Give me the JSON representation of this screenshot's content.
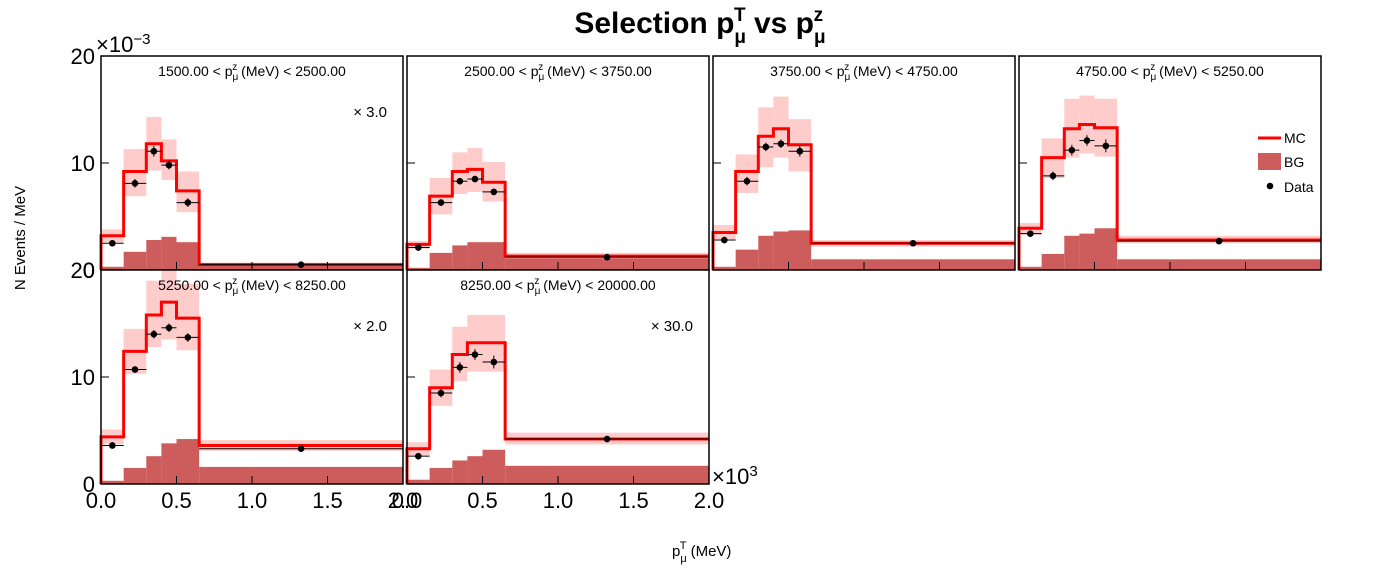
{
  "title": {
    "main": "Selection p",
    "sub": "μ",
    "sup": "T",
    "mid": " vs p",
    "sub2": "μ",
    "sup2": "z"
  },
  "x_axis_label": {
    "main": "p",
    "sub": "μ",
    "sup": "T",
    "rest": " (MeV)"
  },
  "y_axis_label": "N Events / MeV",
  "y_exponent": {
    "base": "×10",
    "power": "−3"
  },
  "x_exponent": {
    "base": "×10",
    "power": "3"
  },
  "colors": {
    "mc": "#ff0000",
    "mc_band": "#ffcccc",
    "bg": "#cd5c5c",
    "data": "#000000"
  },
  "legend": [
    {
      "label": "MC",
      "kind": "line"
    },
    {
      "label": "BG",
      "kind": "box"
    },
    {
      "label": "Data",
      "kind": "marker"
    }
  ],
  "chart_data": {
    "type": "histogram-grid",
    "x_bin_edges": [
      0,
      0.15,
      0.3,
      0.4,
      0.5,
      0.65,
      2.0
    ],
    "x_units": "×10^3 MeV",
    "y_units": "×10^-3",
    "xlim": [
      0,
      2.0
    ],
    "ylim": [
      0,
      20
    ],
    "x_ticks": [
      "0.0",
      "0.5",
      "1.0",
      "1.5",
      "2.0"
    ],
    "y_ticks": [
      "0",
      "10",
      "20"
    ],
    "panels": [
      {
        "label_pre": "1500.00 < p",
        "label_post": " (MeV) < 2500.00",
        "scale": "× 3.0",
        "mc": [
          3.2,
          9.2,
          11.8,
          10.2,
          7.4,
          0.5
        ],
        "mc_band": [
          [
            2.6,
            3.8
          ],
          [
            6.9,
            11.3
          ],
          [
            9.3,
            14.3
          ],
          [
            8.4,
            12.2
          ],
          [
            5.4,
            9.2
          ],
          [
            0.3,
            0.7
          ]
        ],
        "bg": [
          0.3,
          1.7,
          2.8,
          3.1,
          2.6,
          0.4
        ],
        "data": [
          2.5,
          8.1,
          11.1,
          9.8,
          6.3,
          0.5
        ],
        "data_err": [
          0.3,
          0.4,
          0.5,
          0.4,
          0.4,
          0.05
        ]
      },
      {
        "label_pre": "2500.00 < p",
        "label_post": " (MeV) < 3750.00",
        "scale": "",
        "mc": [
          2.4,
          6.9,
          9.2,
          9.4,
          8.2,
          1.3
        ],
        "mc_band": [
          [
            2.0,
            2.7
          ],
          [
            5.2,
            8.6
          ],
          [
            7.1,
            11.0
          ],
          [
            7.3,
            11.4
          ],
          [
            6.4,
            10.1
          ],
          [
            1.0,
            1.6
          ]
        ],
        "bg": [
          0.2,
          1.6,
          2.3,
          2.6,
          2.6,
          1.1
        ],
        "data": [
          2.1,
          6.3,
          8.3,
          8.5,
          7.3,
          1.2
        ],
        "data_err": [
          0.3,
          0.3,
          0.3,
          0.3,
          0.3,
          0.05
        ]
      },
      {
        "label_pre": "3750.00 < p",
        "label_post": " (MeV) < 4750.00",
        "scale": "",
        "mc": [
          3.5,
          9.2,
          12.5,
          13.2,
          11.7,
          2.5
        ],
        "mc_band": [
          [
            2.9,
            4.2
          ],
          [
            7.2,
            10.8
          ],
          [
            9.6,
            15.2
          ],
          [
            10.5,
            16.2
          ],
          [
            9.2,
            14.1
          ],
          [
            2.2,
            2.8
          ]
        ],
        "bg": [
          0.3,
          1.9,
          3.2,
          3.6,
          3.7,
          1.0
        ],
        "data": [
          2.8,
          8.3,
          11.5,
          11.8,
          11.1,
          2.5
        ],
        "data_err": [
          0.3,
          0.4,
          0.4,
          0.4,
          0.5,
          0.05
        ]
      },
      {
        "label_pre": "4750.00 < p",
        "label_post": " (MeV) < 5250.00",
        "scale": "",
        "mc": [
          3.9,
          10.5,
          13.2,
          13.6,
          13.3,
          2.8
        ],
        "mc_band": [
          [
            3.3,
            4.4
          ],
          [
            8.6,
            12.3
          ],
          [
            10.5,
            16.0
          ],
          [
            10.9,
            16.3
          ],
          [
            10.6,
            16.0
          ],
          [
            2.5,
            3.2
          ]
        ],
        "bg": [
          0.3,
          1.5,
          3.2,
          3.4,
          3.9,
          1.0
        ],
        "data": [
          3.4,
          8.8,
          11.2,
          12.1,
          11.6,
          2.7
        ],
        "data_err": [
          0.3,
          0.4,
          0.5,
          0.5,
          0.6,
          0.05
        ]
      },
      {
        "label_pre": "5250.00 < p",
        "label_post": " (MeV) < 8250.00",
        "scale": "× 2.0",
        "mc": [
          4.4,
          12.4,
          15.8,
          17.0,
          15.5,
          3.6
        ],
        "mc_band": [
          [
            3.7,
            5.1
          ],
          [
            10.3,
            14.5
          ],
          [
            12.8,
            19.0
          ],
          [
            13.5,
            20.0
          ],
          [
            12.5,
            18.7
          ],
          [
            3.1,
            4.1
          ]
        ],
        "bg": [
          0.3,
          1.5,
          2.6,
          3.8,
          4.2,
          1.6
        ],
        "data": [
          3.6,
          10.7,
          14.0,
          14.6,
          13.7,
          3.3
        ],
        "data_err": [
          0.3,
          0.3,
          0.4,
          0.4,
          0.4,
          0.05
        ]
      },
      {
        "label_pre": "8250.00 < p",
        "label_post": " (MeV) < 20000.00",
        "scale": "× 30.0",
        "mc": [
          3.3,
          9.0,
          12.1,
          13.2,
          13.2,
          4.2
        ],
        "mc_band": [
          [
            2.7,
            3.9
          ],
          [
            7.3,
            10.7
          ],
          [
            9.6,
            14.7
          ],
          [
            10.5,
            15.8
          ],
          [
            10.5,
            15.8
          ],
          [
            3.7,
            4.8
          ]
        ],
        "bg": [
          0.4,
          1.5,
          2.2,
          2.6,
          3.2,
          1.7
        ],
        "data": [
          2.6,
          8.5,
          10.9,
          12.1,
          11.4,
          4.2
        ],
        "data_err": [
          0.3,
          0.4,
          0.5,
          0.5,
          0.6,
          0.05
        ]
      }
    ]
  }
}
